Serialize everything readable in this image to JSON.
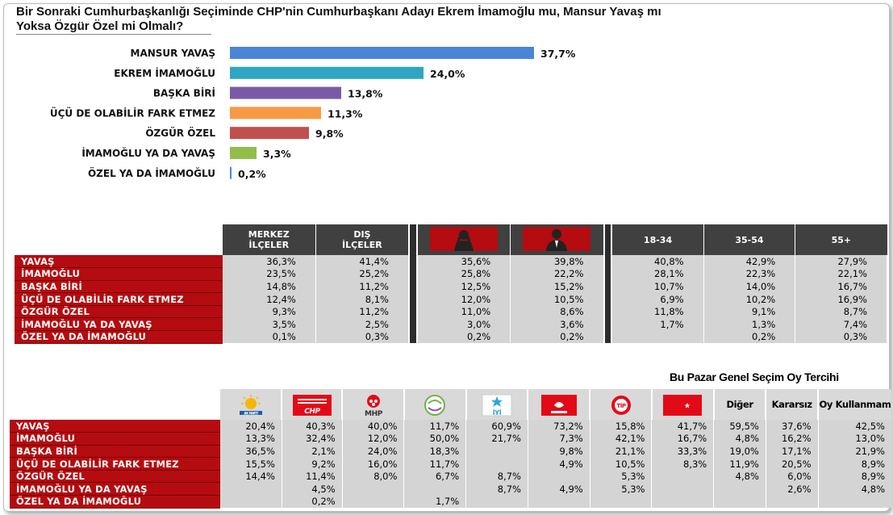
{
  "title": "Bir Sonraki Cumhurbaşkanlığı Seçiminde CHP'nin Cumhurbaşkanı Adayı Ekrem İmamoğlu mu, Mansur Yavaş mı Yoksa Özgür Özel mi Olmalı?",
  "title_line1": "Bir Sonraki Cumhurbaşkanlığı Seçiminde CHP'nin Cumhurbaşkanı Adayı Ekrem İmamoğlu mu, Mansur Yavaş mı",
  "title_line2": "Yoksa Özgür Özel mi Olmalı?",
  "chart_data": {
    "type": "bar",
    "orientation": "horizontal",
    "categories": [
      "MANSUR YAVAŞ",
      "EKREM İMAMOĞLU",
      "BAŞKA BİRİ",
      "ÜÇÜ DE OLABİLİR FARK ETMEZ",
      "ÖZGÜR ÖZEL",
      "İMAMOĞLU YA DA YAVAŞ",
      "ÖZEL YA DA İMAMOĞLU"
    ],
    "values": [
      37.7,
      24.0,
      13.8,
      11.3,
      9.8,
      3.3,
      0.2
    ],
    "value_labels": [
      "37,7%",
      "24,0%",
      "13,8%",
      "11,3%",
      "9,8%",
      "3,3%",
      "0,2%"
    ],
    "colors": [
      "#4a86d6",
      "#2fa7c2",
      "#7a5aa6",
      "#f79a45",
      "#c0504d",
      "#92bd4b",
      "#4a86d6"
    ],
    "xlim": [
      0,
      40
    ],
    "grid": false,
    "legend": "none"
  },
  "table1": {
    "headers": [
      "MERKEZ İLÇELER",
      "DIŞ İLÇELER",
      "",
      "",
      "18-34",
      "35-54",
      "55+"
    ],
    "header_lines": [
      [
        "MERKEZ",
        "İLÇELER"
      ],
      [
        "DIŞ",
        "İLÇELER"
      ]
    ],
    "icons": [
      "woman-icon",
      "man-icon"
    ],
    "rows": [
      {
        "label": "YAVAŞ",
        "values": [
          "36,3%",
          "41,4%",
          "35,6%",
          "39,8%",
          "40,8%",
          "42,9%",
          "27,9%"
        ]
      },
      {
        "label": "İMAMOĞLU",
        "values": [
          "23,5%",
          "25,2%",
          "25,8%",
          "22,2%",
          "28,1%",
          "22,3%",
          "22,1%"
        ]
      },
      {
        "label": "BAŞKA BİRİ",
        "values": [
          "14,8%",
          "11,2%",
          "12,5%",
          "15,2%",
          "10,7%",
          "14,0%",
          "16,7%"
        ]
      },
      {
        "label": "ÜÇÜ DE OLABİLİR FARK ETMEZ",
        "values": [
          "12,4%",
          "8,1%",
          "12,0%",
          "10,5%",
          "6,9%",
          "10,2%",
          "16,9%"
        ]
      },
      {
        "label": "ÖZGÜR ÖZEL",
        "values": [
          "9,3%",
          "11,2%",
          "11,0%",
          "8,6%",
          "11,8%",
          "9,1%",
          "8,7%"
        ]
      },
      {
        "label": "İMAMOĞLU YA DA YAVAŞ",
        "values": [
          "3,5%",
          "2,5%",
          "3,0%",
          "3,6%",
          "1,7%",
          "1,3%",
          "7,4%"
        ]
      },
      {
        "label": "ÖZEL YA DA İMAMOĞLU",
        "values": [
          "0,1%",
          "0,3%",
          "0,2%",
          "0,2%",
          "",
          "0,2%",
          "0,3%"
        ]
      }
    ]
  },
  "table2": {
    "section_title": "Bu Pazar Genel Seçim Oy Tercihi",
    "headers": [
      "AK PARTİ",
      "CHP",
      "MHP",
      "DEM",
      "İYİ",
      "ZAFER",
      "TİP",
      "YRP",
      "Diğer",
      "Kararsız",
      "Oy Kullanmam"
    ],
    "logo_icons": [
      "akp-logo-icon",
      "chp-logo-icon",
      "mhp-logo-icon",
      "dem-logo-icon",
      "iyi-logo-icon",
      "zafer-logo-icon",
      "tip-logo-icon",
      "yrp-logo-icon"
    ],
    "rows": [
      {
        "label": "YAVAŞ",
        "values": [
          "20,4%",
          "40,3%",
          "40,0%",
          "11,7%",
          "60,9%",
          "73,2%",
          "15,8%",
          "41,7%",
          "59,5%",
          "37,6%",
          "42,5%"
        ]
      },
      {
        "label": "İMAMOĞLU",
        "values": [
          "13,3%",
          "32,4%",
          "12,0%",
          "50,0%",
          "21,7%",
          "7,3%",
          "42,1%",
          "16,7%",
          "4,8%",
          "16,2%",
          "13,0%"
        ]
      },
      {
        "label": "BAŞKA BİRİ",
        "values": [
          "36,5%",
          "2,1%",
          "24,0%",
          "18,3%",
          "",
          "9,8%",
          "21,1%",
          "33,3%",
          "19,0%",
          "17,1%",
          "21,9%"
        ]
      },
      {
        "label": "ÜÇÜ DE OLABİLİR FARK ETMEZ",
        "values": [
          "15,5%",
          "9,2%",
          "16,0%",
          "11,7%",
          "",
          "4,9%",
          "10,5%",
          "8,3%",
          "11,9%",
          "20,5%",
          "8,9%"
        ]
      },
      {
        "label": "ÖZGÜR ÖZEL",
        "values": [
          "14,4%",
          "11,4%",
          "8,0%",
          "6,7%",
          "8,7%",
          "",
          "5,3%",
          "",
          "4,8%",
          "6,0%",
          "8,9%"
        ]
      },
      {
        "label": "İMAMOĞLU YA DA YAVAŞ",
        "values": [
          "",
          "4,5%",
          "",
          "",
          "8,7%",
          "4,9%",
          "5,3%",
          "",
          "",
          "2,6%",
          "4,8%"
        ]
      },
      {
        "label": "ÖZEL YA DA İMAMOĞLU",
        "values": [
          "",
          "0,2%",
          "",
          "1,7%",
          "",
          "",
          "",
          "",
          "",
          "",
          ""
        ]
      }
    ]
  }
}
